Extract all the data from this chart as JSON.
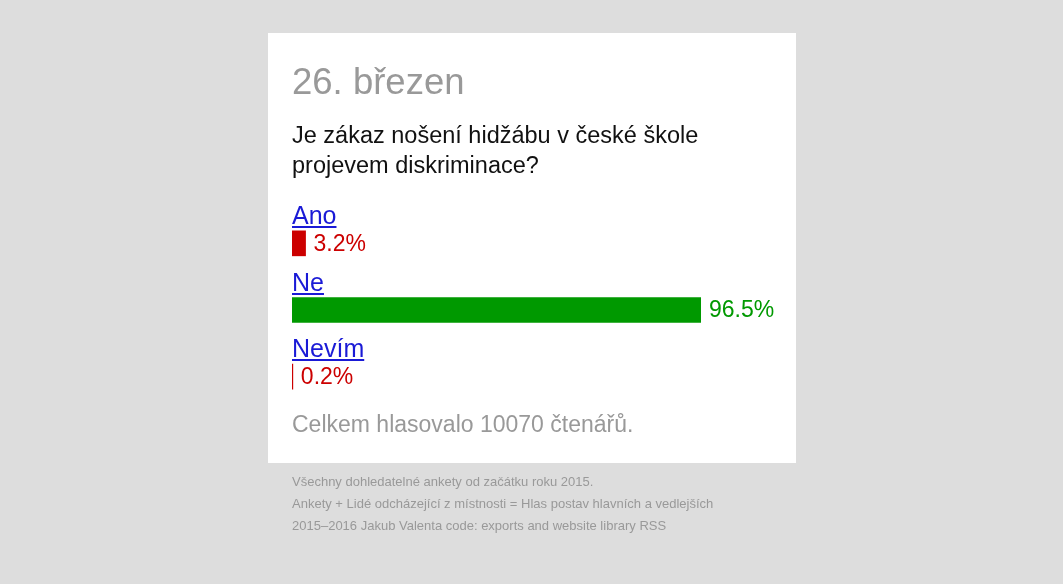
{
  "chart_data": {
    "type": "bar",
    "orientation": "horizontal",
    "title": "26. březen",
    "subtitle": "Je zákaz nošení hidžábu v české škole projevem diskriminace?",
    "categories": [
      "Ano",
      "Ne",
      "Nevím"
    ],
    "values": [
      3.2,
      96.5,
      0.2
    ],
    "colors": [
      "#cc0000",
      "#009900",
      "#cc0000"
    ],
    "value_labels": [
      "3.2%",
      "96.5%",
      "0.2%"
    ],
    "tick_labels": "y",
    "annotations": [
      "Celkem hlasovalo 10070 čtenářů.",
      "Všechny dohledatelné ankety od začátku roku 2015.",
      "Ankety + Lidé odcházející z místnosti = Hlas postav hlavních a vedlejších",
      "2015–2016 Jakub Valenta code: exports and website library RSS"
    ]
  }
}
